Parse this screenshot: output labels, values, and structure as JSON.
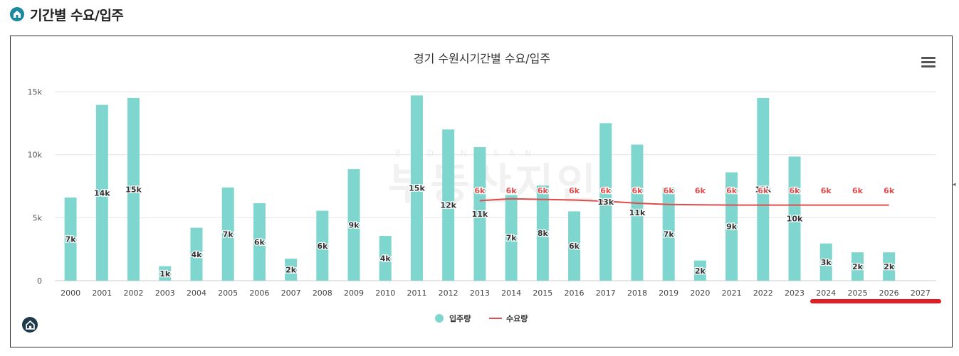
{
  "page": {
    "title": "기간별 수요/입주"
  },
  "watermark": {
    "main": "부동산지인",
    "sub": "BUDONGSAN"
  },
  "colors": {
    "bar": "#7fd6cf",
    "line": "#e04b4b",
    "highlight": "#e31b23",
    "label": "#333333",
    "demand_label": "#e04b4b"
  },
  "chart_data": {
    "type": "bar",
    "title": "경기 수원시기간별 수요/입주",
    "categories": [
      "2000",
      "2001",
      "2002",
      "2003",
      "2004",
      "2005",
      "2006",
      "2007",
      "2008",
      "2009",
      "2010",
      "2011",
      "2012",
      "2013",
      "2014",
      "2015",
      "2016",
      "2017",
      "2018",
      "2019",
      "2020",
      "2021",
      "2022",
      "2023",
      "2024",
      "2025",
      "2026",
      "2027"
    ],
    "ylim": [
      0,
      15000
    ],
    "yticks": [
      {
        "value": 0,
        "label": "0"
      },
      {
        "value": 5000,
        "label": "5k"
      },
      {
        "value": 10000,
        "label": "10k"
      },
      {
        "value": 15000,
        "label": "15k"
      }
    ],
    "grid": true,
    "legend_position": "bottom",
    "series": [
      {
        "name": "입주량",
        "type": "bar",
        "values": [
          6600,
          13950,
          14500,
          1150,
          4200,
          7400,
          6150,
          1750,
          5550,
          8850,
          3550,
          14700,
          12000,
          10600,
          6800,
          7550,
          5500,
          12500,
          10800,
          7400,
          1600,
          8600,
          14500,
          9850,
          2950,
          2250,
          2250,
          null
        ],
        "labels": [
          "7k",
          "14k",
          "15k",
          "1k",
          "4k",
          "7k",
          "6k",
          "2k",
          "6k",
          "9k",
          "4k",
          "15k",
          "12k",
          "11k",
          "7k",
          "8k",
          "6k",
          "13k",
          "11k",
          "7k",
          "2k",
          "9k",
          "15k",
          "10k",
          "3k",
          "2k",
          "2k",
          ""
        ]
      },
      {
        "name": "수요량",
        "type": "line",
        "values": [
          null,
          null,
          null,
          null,
          null,
          null,
          null,
          null,
          null,
          null,
          null,
          null,
          null,
          6350,
          6500,
          6450,
          6400,
          6300,
          6150,
          6050,
          6020,
          6000,
          6000,
          6000,
          6000,
          6000,
          6000,
          null
        ],
        "labels": [
          "",
          "",
          "",
          "",
          "",
          "",
          "",
          "",
          "",
          "",
          "",
          "",
          "",
          "6k",
          "6k",
          "6k",
          "6k",
          "6k",
          "6k",
          "6k",
          "6k",
          "6k",
          "6k",
          "6k",
          "6k",
          "6k",
          "6k",
          ""
        ]
      }
    ]
  }
}
